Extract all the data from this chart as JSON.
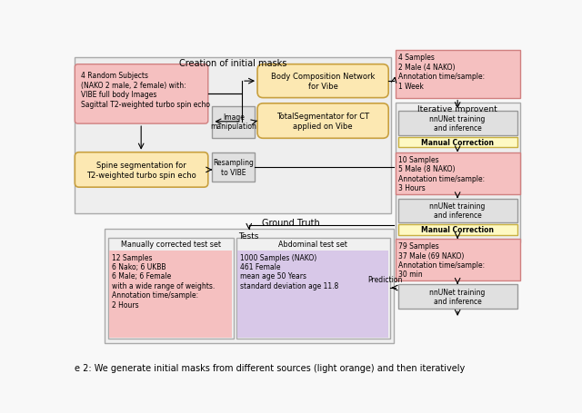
{
  "title": "Creation of initial masks",
  "fig_bg": "#f8f8f8",
  "light_pink_fill": "#f5c0c0",
  "pink_edge": "#d08080",
  "light_orange_fill": "#fce8b2",
  "orange_edge": "#c8a040",
  "yellow_fill": "#fef9c3",
  "yellow_edge": "#c8b040",
  "gray_fill": "#e0e0e0",
  "gray_edge": "#999999",
  "outer_fill": "#eeeeee",
  "outer_edge": "#aaaaaa",
  "lavender_fill": "#d8c8e8",
  "left_box_text": "4 Random Subjects\n(NAKO 2 male, 2 female) with:\nVIBE full body Images\nSagittal T2-weighted turbo spin echo",
  "body_comp_text": "Body Composition Network\nfor Vibe",
  "total_seg_text": "TotalSegmentator for CT\napplied on Vibe",
  "image_manip_text": "Image\nmanipulation",
  "spine_seg_text": "Spine segmentation for\nT2-weighted turbo spin echo",
  "resamp_text": "Resampling\nto VIBE",
  "sample1_text": "4 Samples\n2 Male (4 NAKO)\nAnnotation time/sample:\n1 Week",
  "iterative_text": "Iterative improvent",
  "nnunet1_text": "nnUNet training\nand inference",
  "manual_corr1_text": "Manual Correction",
  "sample2_text": "10 Samples\n5 Male (8 NAKO)\nAnnotation time/sample:\n3 Hours",
  "nnunet2_text": "nnUNet training\nand inference",
  "manual_corr2_text": "Manual Correction",
  "sample3_text": "79 Samples\n37 Male (69 NAKO)\nAnnotation time/sample:\n30 min",
  "nnunet3_text": "nnUNet training\nand inference",
  "ground_truth_text": "Ground Truth",
  "tests_text": "Tests",
  "manual_test_title": "Manually corrected test set",
  "manual_test_text": "12 Samples\n6 Nako; 6 UKBB\n6 Male; 6 Female\nwith a wide range of weights.\nAnnotation time/sample:\n2 Hours",
  "abdom_test_title": "Abdominal test set",
  "abdom_test_text": "1000 Samples (NAKO)\n461 Female\nmean age 50 Years\nstandard deviation age 11.8",
  "prediction_text": "Prediction",
  "caption": "e 2: We generate initial masks from different sources (light orange) and then iteratively"
}
